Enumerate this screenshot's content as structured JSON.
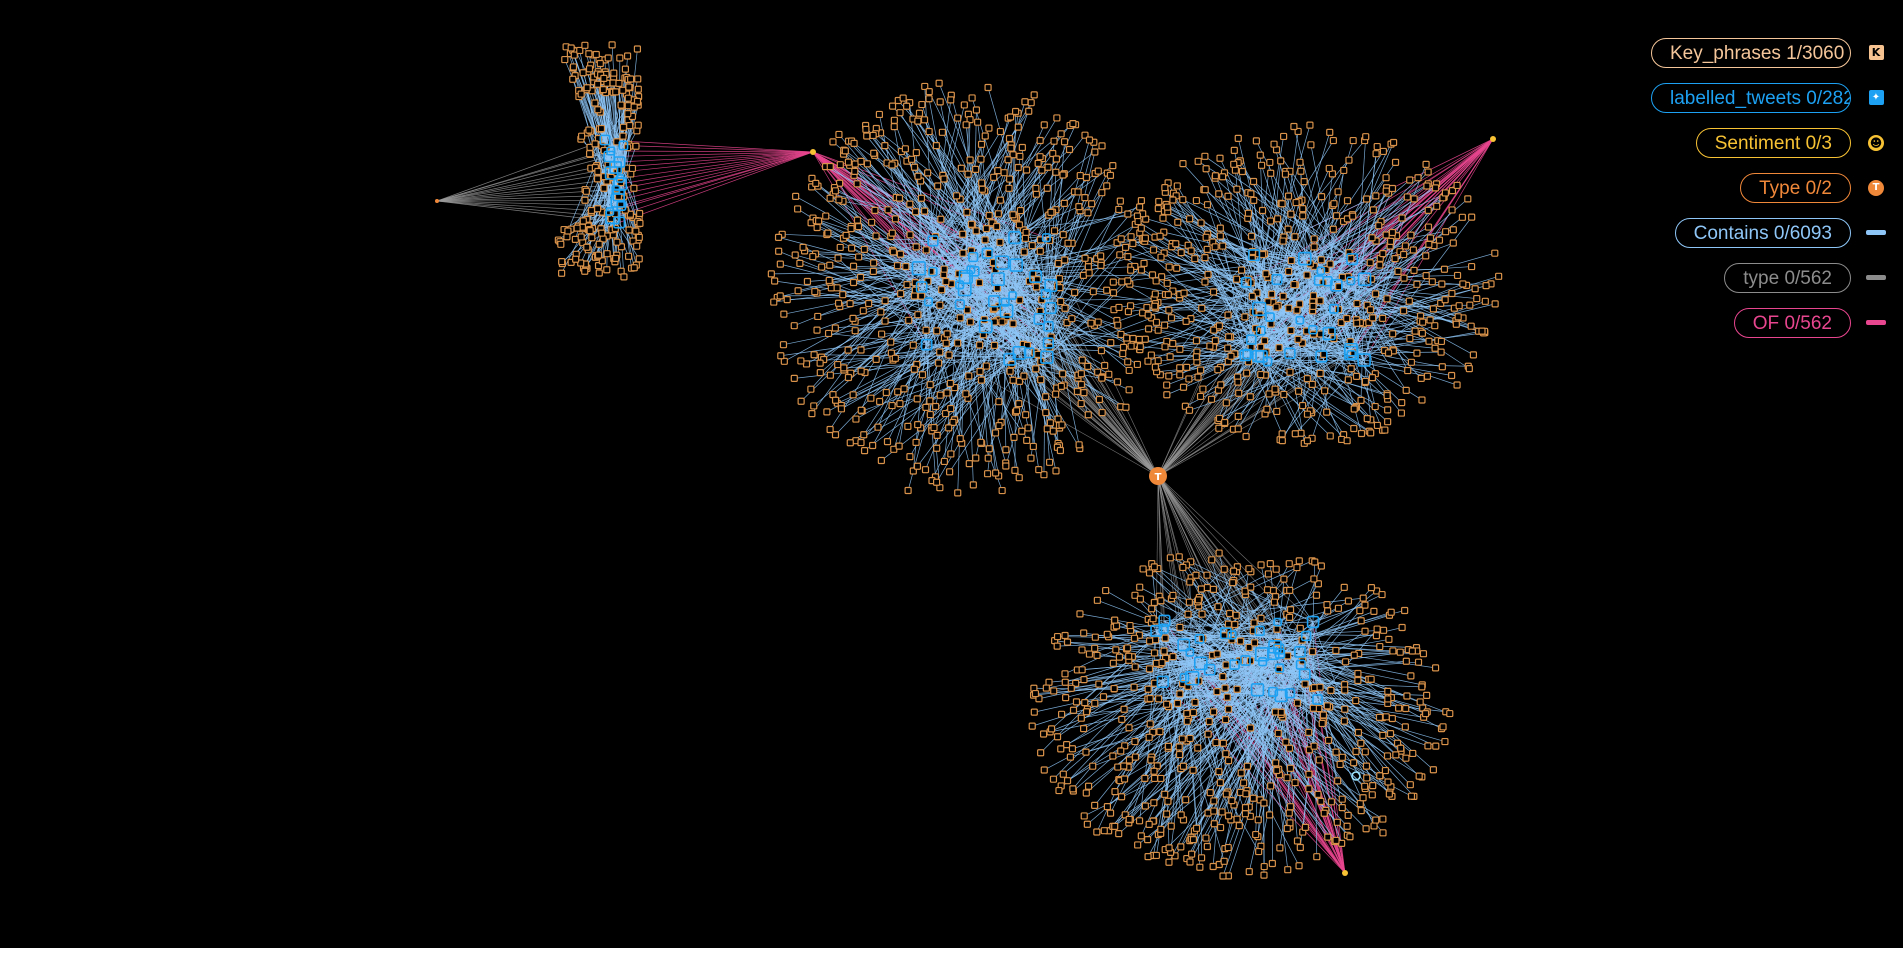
{
  "legend": {
    "nodes": [
      {
        "label": "Key_phrases  1/3060",
        "color": "#f5c69a",
        "icon": "key-phrase-icon",
        "glyph": "K",
        "fill": "#f6c28f"
      },
      {
        "label": "labelled_tweets  0/282",
        "color": "#1da1f2",
        "icon": "twitter-bird-icon",
        "glyph": "✦",
        "fill": "#1da1f2"
      },
      {
        "label": "Sentiment  0/3",
        "color": "#f7c234",
        "icon": "smiley-face-icon",
        "glyph": "☻",
        "fill": "#f7c234"
      },
      {
        "label": "Type  0/2",
        "color": "#f0883a",
        "icon": "type-t-icon",
        "glyph": "T",
        "fill": "#f0883a"
      }
    ],
    "edges": [
      {
        "label": "Contains  0/6093",
        "color": "#8ec6f7",
        "icon": "contains-edge-icon"
      },
      {
        "label": "type  0/562",
        "color": "#8c8c8c",
        "icon": "type-edge-icon"
      },
      {
        "label": "OF  0/562",
        "color": "#e8468f",
        "icon": "of-edge-icon"
      }
    ]
  },
  "colors": {
    "background": "#000000",
    "key_phrase": "#d9924a",
    "tweet": "#1da1f2",
    "contains_edge": "#8ec6f7",
    "type_edge": "#9a9a9a",
    "of_edge": "#e8468f",
    "type_node": "#f0883a"
  }
}
